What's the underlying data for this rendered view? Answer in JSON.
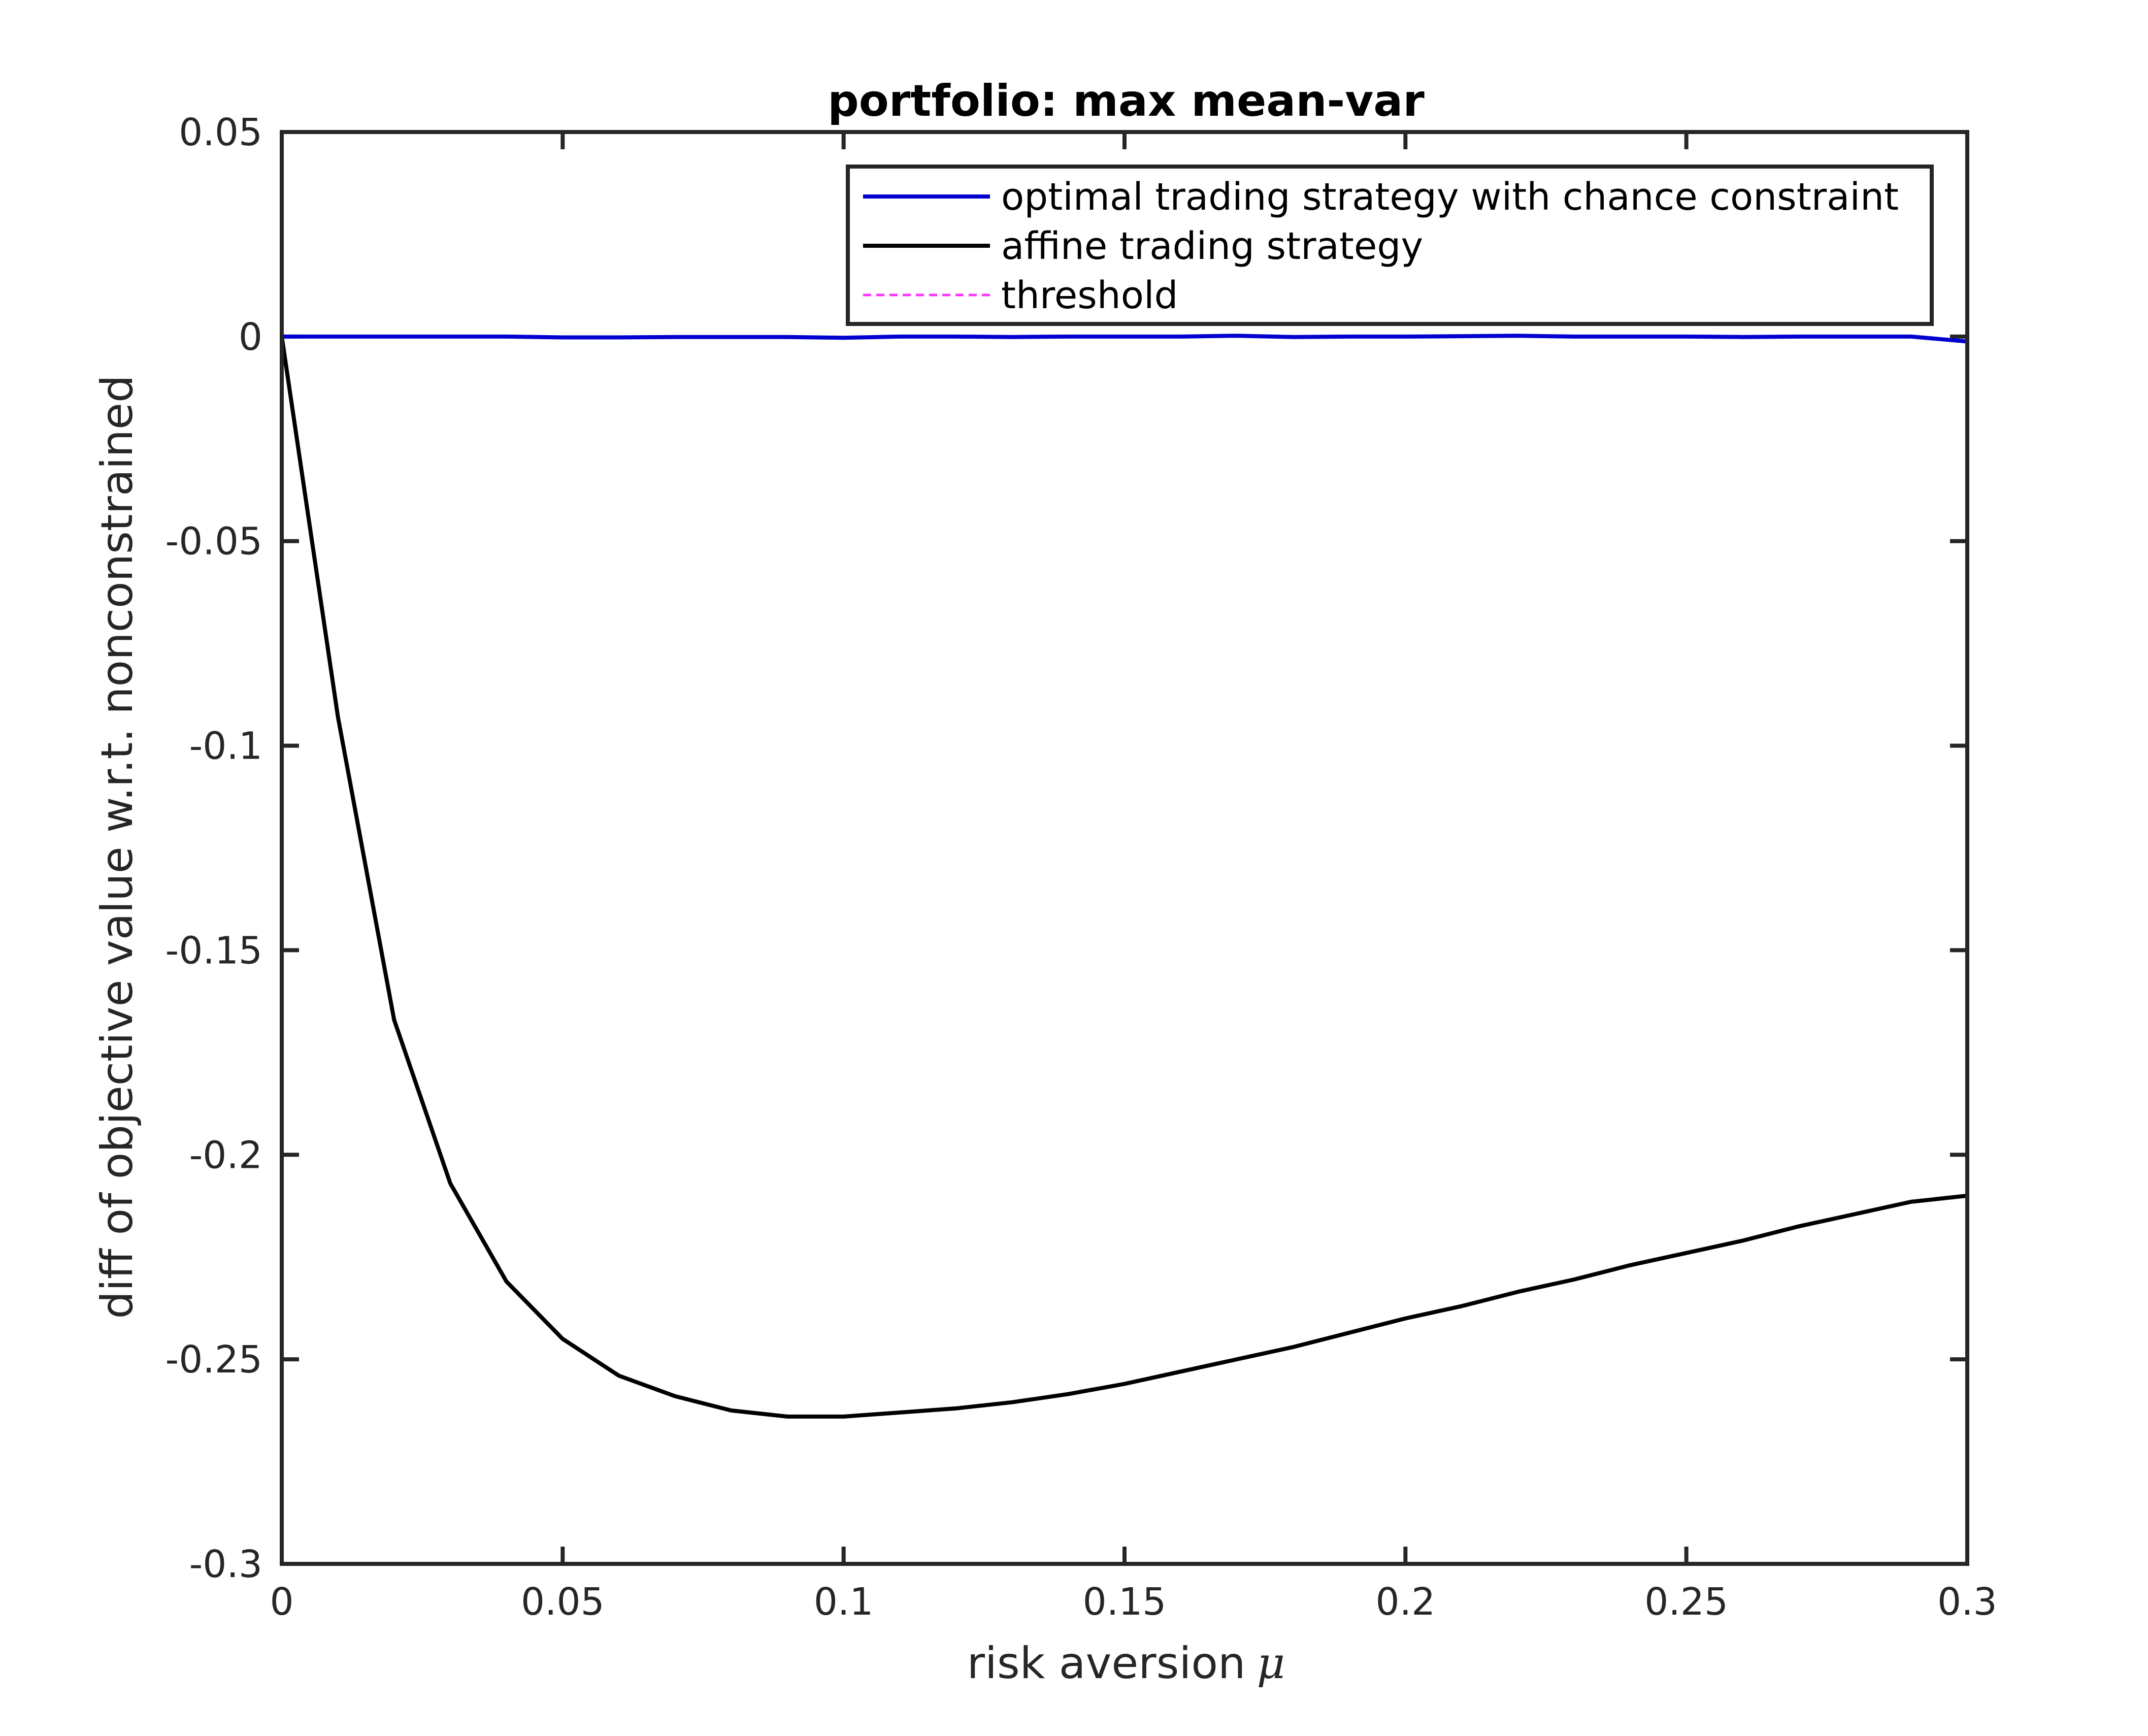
{
  "chart_data": {
    "type": "line",
    "title": "portfolio: max mean-var",
    "xlabel": "risk aversion",
    "xlabel_symbol": "μ",
    "ylabel": "diff of objective value w.r.t. nonconstrained",
    "xlim": [
      0,
      0.3
    ],
    "ylim": [
      -0.3,
      0.05
    ],
    "xticks": [
      0,
      0.05,
      0.1,
      0.15,
      0.2,
      0.25,
      0.3
    ],
    "xtick_labels": [
      "0",
      "0.05",
      "0.1",
      "0.15",
      "0.2",
      "0.25",
      "0.3"
    ],
    "yticks": [
      -0.3,
      -0.25,
      -0.2,
      -0.15,
      -0.1,
      -0.05,
      0,
      0.05
    ],
    "ytick_labels": [
      "-0.3",
      "-0.25",
      "-0.2",
      "-0.15",
      "-0.1",
      "-0.05",
      "0",
      "0.05"
    ],
    "grid": false,
    "legend_position": "top-right",
    "series": [
      {
        "name": "optimal trading strategy with chance constraint",
        "color": "#0000d0",
        "style": "solid",
        "x": [
          0,
          0.01,
          0.02,
          0.03,
          0.04,
          0.05,
          0.06,
          0.07,
          0.08,
          0.09,
          0.1,
          0.11,
          0.12,
          0.13,
          0.14,
          0.15,
          0.16,
          0.17,
          0.18,
          0.19,
          0.2,
          0.21,
          0.22,
          0.23,
          0.24,
          0.25,
          0.26,
          0.27,
          0.28,
          0.29,
          0.3
        ],
        "y": [
          0,
          0,
          0,
          0,
          0,
          -0.0002,
          -0.0002,
          -0.0001,
          -0.0001,
          -0.0001,
          -0.0003,
          0,
          0,
          -0.0001,
          0,
          0,
          0,
          0.0002,
          -0.0001,
          0,
          0,
          0.0001,
          0.0002,
          0,
          0,
          0,
          -0.0001,
          0,
          0,
          0,
          -0.0012
        ]
      },
      {
        "name": "affine trading strategy",
        "color": "#000000",
        "style": "solid",
        "x": [
          0,
          0.01,
          0.02,
          0.03,
          0.04,
          0.05,
          0.06,
          0.07,
          0.08,
          0.09,
          0.1,
          0.11,
          0.12,
          0.13,
          0.14,
          0.15,
          0.16,
          0.17,
          0.18,
          0.19,
          0.2,
          0.21,
          0.22,
          0.23,
          0.24,
          0.25,
          0.26,
          0.27,
          0.28,
          0.29,
          0.3
        ],
        "y": [
          0,
          -0.093,
          -0.167,
          -0.207,
          -0.231,
          -0.245,
          -0.254,
          -0.259,
          -0.2625,
          -0.264,
          -0.264,
          -0.263,
          -0.262,
          -0.2605,
          -0.2585,
          -0.256,
          -0.253,
          -0.25,
          -0.247,
          -0.2435,
          -0.24,
          -0.237,
          -0.2335,
          -0.2305,
          -0.227,
          -0.224,
          -0.221,
          -0.2175,
          -0.2145,
          -0.2115,
          -0.21
        ]
      },
      {
        "name": "threshold",
        "color": "#ff33ff",
        "style": "dashed",
        "vertical_x": 0.3
      }
    ]
  }
}
